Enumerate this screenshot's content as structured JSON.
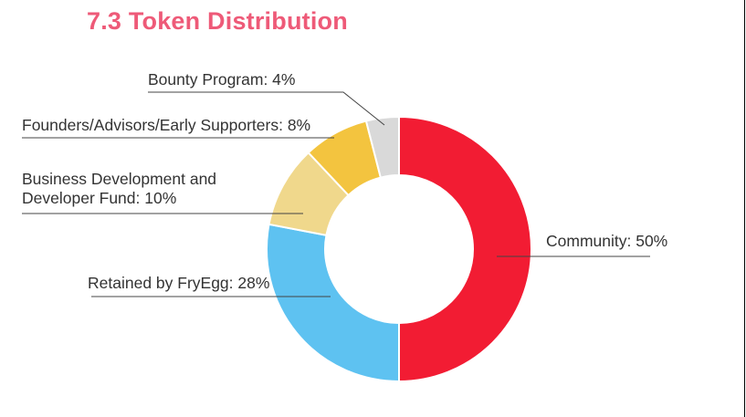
{
  "page": {
    "heading": "7.3 Token Distribution"
  },
  "chart_data": {
    "type": "pie",
    "donut": true,
    "title": "7.3 Token Distribution",
    "unit": "%",
    "slices": [
      {
        "name": "Community",
        "value": 50,
        "color": "#f21c33",
        "label_lines": [
          "Community: 50%"
        ]
      },
      {
        "name": "Retained by FryEgg",
        "value": 28,
        "color": "#5ec2f1",
        "label_lines": [
          "Retained by FryEgg: 28%"
        ]
      },
      {
        "name": "Business Development and Developer Fund",
        "value": 10,
        "color": "#f0d88c",
        "label_lines": [
          "Business Development and",
          "Developer Fund: 10%"
        ]
      },
      {
        "name": "Founders/Advisors/Early Supporters",
        "value": 8,
        "color": "#f3c43f",
        "label_lines": [
          "Founders/Advisors/Early Supporters: 8%"
        ]
      },
      {
        "name": "Bounty Program",
        "value": 4,
        "color": "#d9d9d9",
        "label_lines": [
          "Bounty Program: 4%"
        ]
      }
    ]
  }
}
